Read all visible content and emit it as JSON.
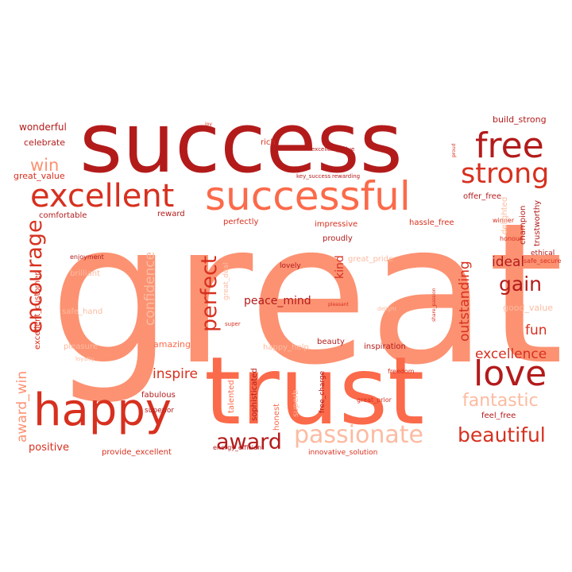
{
  "word_cloud": {
    "palette": {
      "dark_red": "#b31b1b",
      "red": "#d7301f",
      "salmon": "#fb6a4a",
      "peach": "#fc9272",
      "light_peach": "#fcbba1",
      "pale": "#fdd5c4",
      "background": "#ffffff"
    },
    "words": [
      {
        "text": "great",
        "tone": "peach"
      },
      {
        "text": "success",
        "tone": "dark_red"
      },
      {
        "text": "trust",
        "tone": "salmon"
      },
      {
        "text": "successful",
        "tone": "salmon"
      },
      {
        "text": "happy",
        "tone": "red"
      },
      {
        "text": "excellent",
        "tone": "red"
      },
      {
        "text": "free",
        "tone": "dark_red"
      },
      {
        "text": "strong",
        "tone": "red"
      },
      {
        "text": "love",
        "tone": "dark_red"
      },
      {
        "text": "passionate",
        "tone": "light_peach"
      },
      {
        "text": "encourage",
        "tone": "red"
      },
      {
        "text": "award",
        "tone": "dark_red"
      },
      {
        "text": "perfect",
        "tone": "red"
      },
      {
        "text": "win",
        "tone": "peach"
      },
      {
        "text": "beautiful",
        "tone": "red"
      },
      {
        "text": "fantastic",
        "tone": "light_peach"
      },
      {
        "text": "gain",
        "tone": "dark_red"
      },
      {
        "text": "award_win",
        "tone": "peach"
      },
      {
        "text": "outstanding",
        "tone": "red"
      },
      {
        "text": "excellence",
        "tone": "red"
      },
      {
        "text": "confidence",
        "tone": "light_peach"
      },
      {
        "text": "inspire",
        "tone": "red"
      },
      {
        "text": "fun",
        "tone": "red"
      },
      {
        "text": "peace_mind",
        "tone": "dark_red"
      },
      {
        "text": "wonderful",
        "tone": "dark_red"
      },
      {
        "text": "celebrate",
        "tone": "dark_red"
      },
      {
        "text": "great_value",
        "tone": "red"
      },
      {
        "text": "build_strong",
        "tone": "dark_red"
      },
      {
        "text": "offer_free",
        "tone": "dark_red"
      },
      {
        "text": "comfortable",
        "tone": "dark_red"
      },
      {
        "text": "reward",
        "tone": "dark_red"
      },
      {
        "text": "perfectly",
        "tone": "red"
      },
      {
        "text": "impressive",
        "tone": "red"
      },
      {
        "text": "hassle_free",
        "tone": "red"
      },
      {
        "text": "champion",
        "tone": "dark_red"
      },
      {
        "text": "trustworthy",
        "tone": "dark_red"
      },
      {
        "text": "ethical",
        "tone": "dark_red"
      },
      {
        "text": "safe_secure",
        "tone": "red"
      },
      {
        "text": "proudly",
        "tone": "dark_red"
      },
      {
        "text": "kind",
        "tone": "red"
      },
      {
        "text": "great_pride",
        "tone": "light_peach"
      },
      {
        "text": "ideal",
        "tone": "dark_red"
      },
      {
        "text": "lovely",
        "tone": "dark_red"
      },
      {
        "text": "good_value",
        "tone": "light_peach"
      },
      {
        "text": "excellent_customer",
        "tone": "red"
      },
      {
        "text": "amazing",
        "tone": "salmon"
      },
      {
        "text": "fabulous",
        "tone": "dark_red"
      },
      {
        "text": "superior",
        "tone": "dark_red"
      },
      {
        "text": "sophisticated",
        "tone": "dark_red"
      },
      {
        "text": "talented",
        "tone": "salmon"
      },
      {
        "text": "honest",
        "tone": "salmon"
      },
      {
        "text": "beauty",
        "tone": "dark_red"
      },
      {
        "text": "inspiration",
        "tone": "dark_red"
      },
      {
        "text": "free_charge",
        "tone": "dark_red"
      },
      {
        "text": "great_prior",
        "tone": "red"
      },
      {
        "text": "feel_free",
        "tone": "dark_red"
      },
      {
        "text": "positive",
        "tone": "red"
      },
      {
        "text": "provide_excellent",
        "tone": "red"
      },
      {
        "text": "energy_efficient",
        "tone": "dark_red"
      },
      {
        "text": "innovative_solution",
        "tone": "red"
      },
      {
        "text": "enjoyment",
        "tone": "dark_red"
      },
      {
        "text": "brilliant",
        "tone": "light_peach"
      },
      {
        "text": "safe_hand",
        "tone": "light_peach"
      },
      {
        "text": "pleasure",
        "tone": "light_peach"
      },
      {
        "text": "happy_help",
        "tone": "light_peach"
      },
      {
        "text": "superb",
        "tone": "light_peach"
      },
      {
        "text": "winner",
        "tone": "red"
      },
      {
        "text": "delighted",
        "tone": "light_peach"
      },
      {
        "text": "rich",
        "tone": "red"
      },
      {
        "text": "key_success",
        "tone": "dark_red"
      },
      {
        "text": "rewarding",
        "tone": "dark_red"
      },
      {
        "text": "excellent_value",
        "tone": "dark_red"
      },
      {
        "text": "honour",
        "tone": "red"
      },
      {
        "text": "freedom",
        "tone": "red"
      },
      {
        "text": "super",
        "tone": "red"
      },
      {
        "text": "loyalty",
        "tone": "light_peach"
      },
      {
        "text": "great_deal",
        "tone": "light_peach"
      },
      {
        "text": "delight",
        "tone": "light_peach"
      },
      {
        "text": "joy",
        "tone": "red"
      },
      {
        "text": "pleasant",
        "tone": "red"
      },
      {
        "text": "share_passion",
        "tone": "red"
      },
      {
        "text": "proud",
        "tone": "red"
      }
    ]
  }
}
